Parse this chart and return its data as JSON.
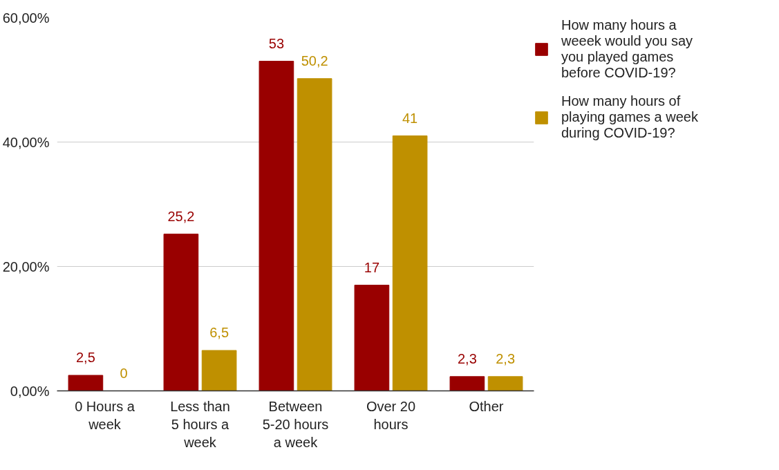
{
  "chart_data": {
    "type": "bar",
    "categories": [
      "0 Hours a week",
      "Less than 5 hours a week",
      "Between 5-20 hours a week",
      "Over 20 hours",
      "Other"
    ],
    "series": [
      {
        "name": "How many hours a weeek would you say you played games before COVID-19?",
        "color": "#990000",
        "values": [
          2.5,
          25.2,
          53,
          17,
          2.3
        ],
        "value_labels": [
          "2,5",
          "25,2",
          "53",
          "17",
          "2,3"
        ]
      },
      {
        "name": "How many hours of playing games a week during COVID-19?",
        "color": "#bf9000",
        "values": [
          0,
          6.5,
          50.2,
          41,
          2.3
        ],
        "value_labels": [
          "0",
          "6,5",
          "50,2",
          "41",
          "2,3"
        ]
      }
    ],
    "ylim": [
      0,
      60
    ],
    "yticks": [
      {
        "value": 0,
        "label": "0,00%"
      },
      {
        "value": 20,
        "label": "20,00%"
      },
      {
        "value": 40,
        "label": "40,00%"
      },
      {
        "value": 60,
        "label": "60,00%"
      }
    ],
    "grid": "y",
    "legend": "top right"
  }
}
